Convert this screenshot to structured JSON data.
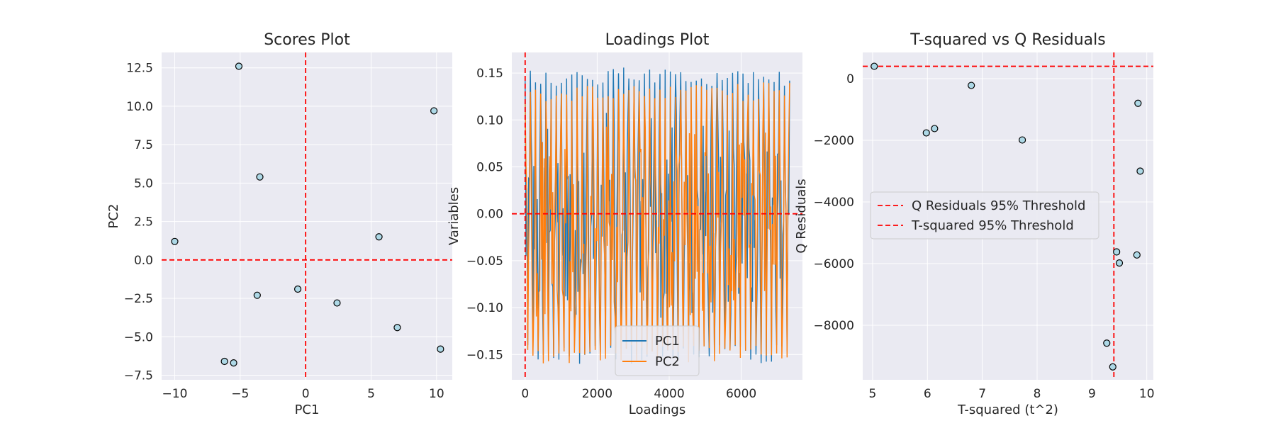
{
  "colors": {
    "background": "#eaeaf2",
    "grid": "#ffffff",
    "threshold": "#ff0000",
    "marker_face": "#add8e6",
    "marker_edge": "#000000",
    "pc1": "#1f77b4",
    "pc2": "#ff7f0e"
  },
  "chart_data": [
    {
      "type": "scatter",
      "title": "Scores Plot",
      "xlabel": "PC1",
      "ylabel": "PC2",
      "xlim": [
        -11,
        11.2
      ],
      "ylim": [
        -7.8,
        13.5
      ],
      "xticks": [
        -10,
        -5,
        0,
        5,
        10
      ],
      "yticks": [
        -7.5,
        -5.0,
        -2.5,
        0.0,
        2.5,
        5.0,
        7.5,
        10.0,
        12.5
      ],
      "xtick_labels": [
        "−10",
        "−5",
        "0",
        "5",
        "10"
      ],
      "ytick_labels": [
        "−7.5",
        "−5.0",
        "−2.5",
        "0.0",
        "2.5",
        "5.0",
        "7.5",
        "10.0",
        "12.5"
      ],
      "points": [
        {
          "x": -10.0,
          "y": 1.2
        },
        {
          "x": -5.1,
          "y": 12.6
        },
        {
          "x": -3.5,
          "y": 5.4
        },
        {
          "x": -3.7,
          "y": -2.3
        },
        {
          "x": -0.6,
          "y": -1.9
        },
        {
          "x": 2.4,
          "y": -2.8
        },
        {
          "x": 5.6,
          "y": 1.5
        },
        {
          "x": 7.0,
          "y": -4.4
        },
        {
          "x": 9.8,
          "y": 9.7
        },
        {
          "x": 10.3,
          "y": -5.8
        },
        {
          "x": -6.2,
          "y": -6.6
        },
        {
          "x": -5.5,
          "y": -6.7
        }
      ],
      "hline": 0,
      "vline": 0,
      "grid": true
    },
    {
      "type": "line",
      "title": "Loadings Plot",
      "xlabel": "Loadings",
      "ylabel": "Variables",
      "xlim": [
        -370,
        7700
      ],
      "ylim": [
        -0.177,
        0.172
      ],
      "xticks": [
        0,
        2000,
        4000,
        6000
      ],
      "yticks": [
        -0.15,
        -0.1,
        -0.05,
        0.0,
        0.05,
        0.1,
        0.15
      ],
      "xtick_labels": [
        "0",
        "2000",
        "4000",
        "6000"
      ],
      "ytick_labels": [
        "−0.15",
        "−0.10",
        "−0.05",
        "0.00",
        "0.05",
        "0.10",
        "0.15"
      ],
      "n_variables": 7350,
      "series": [
        {
          "name": "PC1",
          "color_key": "pc1",
          "range": [
            -0.16,
            0.156
          ]
        },
        {
          "name": "PC2",
          "color_key": "pc2",
          "range": [
            -0.16,
            0.14
          ]
        }
      ],
      "hline": 0,
      "vline": 0,
      "legend": "lower center",
      "grid": true
    },
    {
      "type": "scatter",
      "title": "T-squared vs Q Residuals",
      "xlabel": "T-squared (t^2)",
      "ylabel": "Q Residuals",
      "xlim": [
        4.82,
        10.12
      ],
      "ylim": [
        -9770,
        850
      ],
      "xticks": [
        5,
        6,
        7,
        8,
        9,
        10
      ],
      "yticks": [
        -8000,
        -6000,
        -4000,
        -2000,
        0
      ],
      "xtick_labels": [
        "5",
        "6",
        "7",
        "8",
        "9",
        "10"
      ],
      "ytick_labels": [
        "−8000",
        "−6000",
        "−4000",
        "−2000",
        "0"
      ],
      "points": [
        {
          "x": 5.03,
          "y": 400
        },
        {
          "x": 5.98,
          "y": -1760
        },
        {
          "x": 6.13,
          "y": -1620
        },
        {
          "x": 6.8,
          "y": -220
        },
        {
          "x": 7.73,
          "y": -1990
        },
        {
          "x": 9.27,
          "y": -8580
        },
        {
          "x": 9.38,
          "y": -9350
        },
        {
          "x": 9.45,
          "y": -5620
        },
        {
          "x": 9.5,
          "y": -5980
        },
        {
          "x": 9.82,
          "y": -5720
        },
        {
          "x": 9.84,
          "y": -800
        },
        {
          "x": 9.88,
          "y": -3000
        }
      ],
      "hline": 400,
      "vline": 9.4,
      "legend_entries": [
        "Q Residuals 95% Threshold",
        "T-squared 95% Threshold"
      ],
      "legend": "center-left",
      "grid": true
    }
  ]
}
